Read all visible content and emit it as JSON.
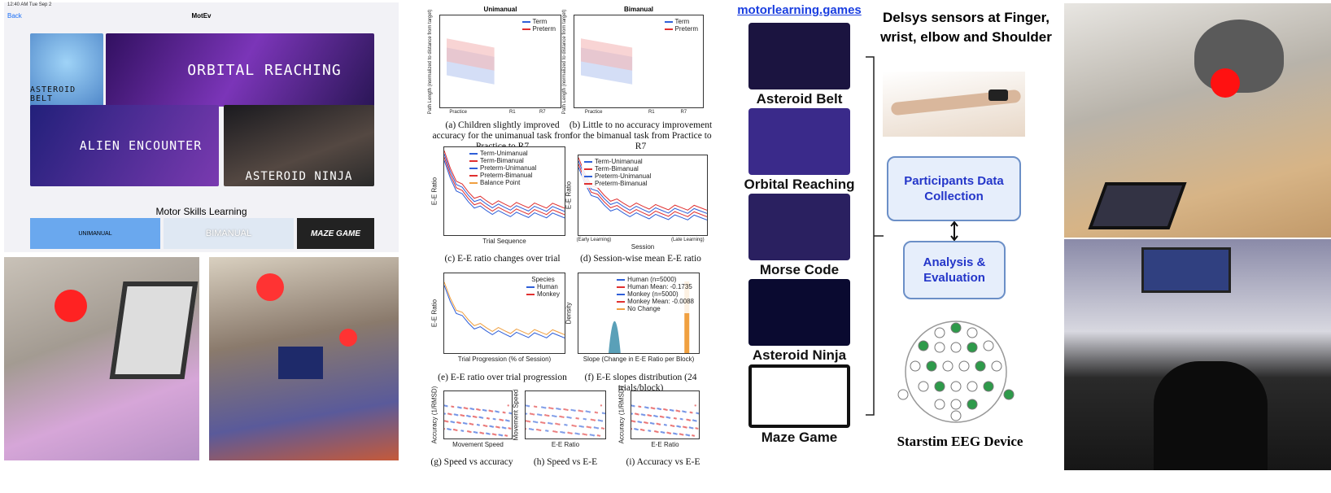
{
  "app": {
    "status": "12:40 AM  Tue Sep 2",
    "back": "Back",
    "title": "MotEv",
    "tiles": [
      "ASTEROID BELT",
      "ORBITAL REACHING",
      "ALIEN ENCOUNTER",
      "ASTEROID NINJA"
    ],
    "section": "Motor Skills Learning",
    "modes": [
      "UNIMANUAL",
      "BIMANUAL",
      "MAZE GAME"
    ]
  },
  "panels": [
    {
      "title": "Unimanual",
      "legend": [
        "Term",
        "Preterm"
      ],
      "ylabel": "Path Length (normalized to distance from target)",
      "xlabels": [
        "Practice",
        "R1",
        "R7"
      ],
      "caption": "(a) Children slightly improved accuracy for the unimanual task from Practice to R7"
    },
    {
      "title": "Bimanual",
      "legend": [
        "Term",
        "Preterm"
      ],
      "ylabel": "Path Length (normalized to distance from target)",
      "xlabels": [
        "Practice",
        "R1",
        "R7"
      ],
      "caption": "(b) Little to no accuracy improvement for the bimanual task from Practice to R7"
    },
    {
      "legend": [
        "Term-Unimanual",
        "Term-Bimanual",
        "Preterm-Unimanual",
        "Preterm-Bimanual",
        "Balance Point"
      ],
      "ylabel": "E-E Ratio",
      "xlabel": "Trial Sequence",
      "caption": "(c) E-E ratio changes over trial"
    },
    {
      "legend": [
        "Term-Unimanual",
        "Term-Bimanual",
        "Preterm-Unimanual",
        "Preterm-Bimanual"
      ],
      "ylabel": "E-E Ratio",
      "xlabel": "Session",
      "xlabels": [
        "(Early Learning)",
        "(Late Learning)"
      ],
      "caption": "(d) Session-wise mean E-E ratio"
    },
    {
      "legend_title": "Species",
      "legend": [
        "Human",
        "Monkey"
      ],
      "ylabel": "E-E Ratio",
      "xlabel": "Trial Progression (% of Session)",
      "caption": "(e) E-E ratio over trial progression"
    },
    {
      "legend": [
        "Human (n=5000)",
        "Human Mean: -0.1735",
        "Monkey (n=5000)",
        "Monkey Mean: -0.0088",
        "No Change"
      ],
      "ylabel": "Density",
      "xlabel": "Slope (Change in E-E Ratio per Block)",
      "caption": "(f) E-E slopes distribution (24 trials/block)"
    },
    {
      "ylabel": "Accuracy (1/RMSD)",
      "xlabel": "Movement Speed",
      "caption": "(g) Speed vs accuracy"
    },
    {
      "ylabel": "Movement Speed",
      "xlabel": "E-E Ratio",
      "caption": "(h) Speed vs E-E"
    },
    {
      "ylabel": "Accuracy (1/RMSD)",
      "xlabel": "E-E Ratio",
      "caption": "(i) Accuracy vs E-E"
    }
  ],
  "games": {
    "link": "motorlearning.games",
    "names": [
      "Asteroid Belt",
      "Orbital Reaching",
      "Morse Code",
      "Asteroid Ninja",
      "Maze Game"
    ]
  },
  "pipeline": {
    "sensors": "Delsys sensors at Finger, wrist, elbow and Shoulder",
    "steps": [
      "Participants Data Collection",
      "Analysis & Evaluation"
    ],
    "device": "Starstim EEG Device"
  }
}
